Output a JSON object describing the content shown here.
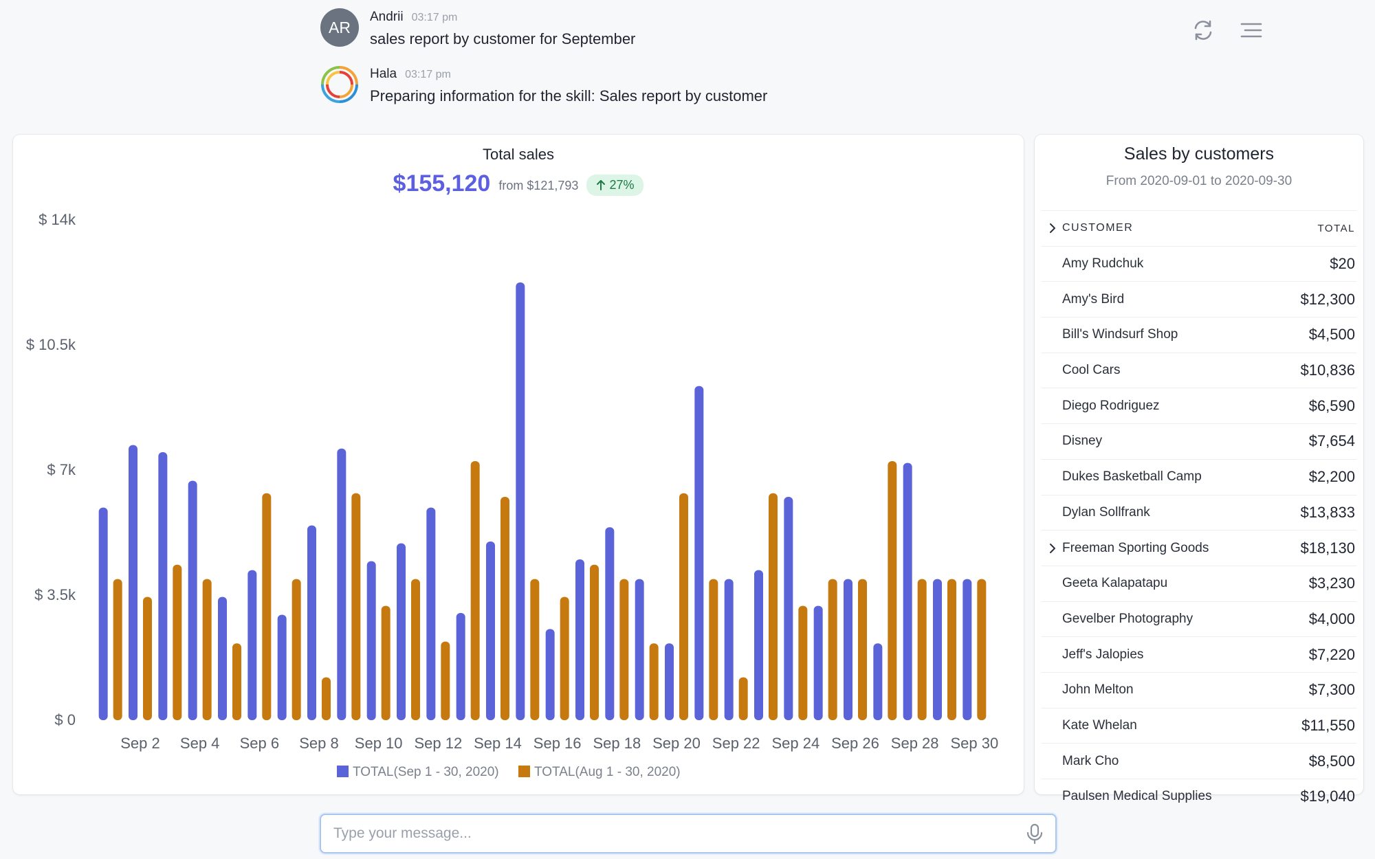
{
  "messages": [
    {
      "avatar_initials": "AR",
      "name": "Andrii",
      "time": "03:17 pm",
      "text": "sales report by customer for September"
    },
    {
      "name": "Hala",
      "time": "03:17 pm",
      "text": "Preparing information for the skill: Sales report by customer"
    }
  ],
  "toolbar": {
    "refresh_icon": "refresh-icon",
    "menu_icon": "menu-icon"
  },
  "chart_card": {
    "title": "Total sales",
    "value": "$155,120",
    "from": "from $121,793",
    "change": "27%"
  },
  "chart_data": {
    "type": "bar",
    "title": "Total sales",
    "xlabel": "",
    "ylabel": "",
    "ylim": [
      0,
      14000
    ],
    "yticks": [
      "$ 0",
      "$ 3.5k",
      "$ 7k",
      "$ 10.5k",
      "$ 14k"
    ],
    "ytick_values": [
      0,
      3500,
      7000,
      10500,
      14000
    ],
    "xtick_labels": [
      "Sep 2",
      "Sep 4",
      "Sep 6",
      "Sep 8",
      "Sep 10",
      "Sep 12",
      "Sep 14",
      "Sep 16",
      "Sep 18",
      "Sep 20",
      "Sep 22",
      "Sep 24",
      "Sep 26",
      "Sep 28",
      "Sep 30"
    ],
    "categories": [
      "Sep 1",
      "Sep 2",
      "Sep 3",
      "Sep 4",
      "Sep 5",
      "Sep 6",
      "Sep 7",
      "Sep 8",
      "Sep 9",
      "Sep 10",
      "Sep 11",
      "Sep 12",
      "Sep 13",
      "Sep 14",
      "Sep 15",
      "Sep 16",
      "Sep 17",
      "Sep 18",
      "Sep 19",
      "Sep 20",
      "Sep 21",
      "Sep 22",
      "Sep 23",
      "Sep 24",
      "Sep 25",
      "Sep 26",
      "Sep 27",
      "Sep 28",
      "Sep 29",
      "Sep 30"
    ],
    "grid": false,
    "legend_position": "bottom",
    "series": [
      {
        "name": "TOTAL(Sep 1 - 30, 2020)",
        "color": "#5b63d8",
        "values": [
          5950,
          7700,
          7500,
          6700,
          3450,
          4200,
          2950,
          5450,
          7600,
          4450,
          4950,
          5950,
          3000,
          5000,
          12250,
          2550,
          4500,
          5400,
          3950,
          2150,
          9350,
          3950,
          4200,
          6250,
          3200,
          3950,
          2150,
          7200,
          3950,
          3950
        ]
      },
      {
        "name": "TOTAL(Aug 1 - 30, 2020)",
        "color": "#c6790f",
        "values": [
          3950,
          3450,
          4350,
          3950,
          2150,
          6350,
          3950,
          1200,
          6350,
          3200,
          3950,
          2200,
          7250,
          6250,
          3950,
          3450,
          4350,
          3950,
          2150,
          6350,
          3950,
          1200,
          6350,
          3200,
          3950,
          3950,
          7250,
          3950,
          3950,
          3950
        ]
      }
    ]
  },
  "sales_table": {
    "title": "Sales by customers",
    "subtitle": "From 2020-09-01 to 2020-09-30",
    "col_customer": "CUSTOMER",
    "col_total": "TOTAL",
    "rows": [
      {
        "name": "Amy Rudchuk",
        "total": "$20",
        "expandable": false
      },
      {
        "name": "Amy's Bird",
        "total": "$12,300",
        "expandable": false
      },
      {
        "name": "Bill's Windsurf Shop",
        "total": "$4,500",
        "expandable": false
      },
      {
        "name": "Cool Cars",
        "total": "$10,836",
        "expandable": false
      },
      {
        "name": "Diego Rodriguez",
        "total": "$6,590",
        "expandable": false
      },
      {
        "name": "Disney",
        "total": "$7,654",
        "expandable": false
      },
      {
        "name": "Dukes Basketball Camp",
        "total": "$2,200",
        "expandable": false
      },
      {
        "name": "Dylan Sollfrank",
        "total": "$13,833",
        "expandable": false
      },
      {
        "name": "Freeman Sporting Goods",
        "total": "$18,130",
        "expandable": true
      },
      {
        "name": "Geeta Kalapatapu",
        "total": "$3,230",
        "expandable": false
      },
      {
        "name": "Gevelber Photography",
        "total": "$4,000",
        "expandable": false
      },
      {
        "name": "Jeff's Jalopies",
        "total": "$7,220",
        "expandable": false
      },
      {
        "name": "John Melton",
        "total": "$7,300",
        "expandable": false
      },
      {
        "name": "Kate Whelan",
        "total": "$11,550",
        "expandable": false
      },
      {
        "name": "Mark Cho",
        "total": "$8,500",
        "expandable": false
      },
      {
        "name": "Paulsen Medical Supplies",
        "total": "$19,040",
        "expandable": false
      }
    ]
  },
  "composer": {
    "placeholder": "Type your message...",
    "mic_icon": "microphone-icon"
  }
}
